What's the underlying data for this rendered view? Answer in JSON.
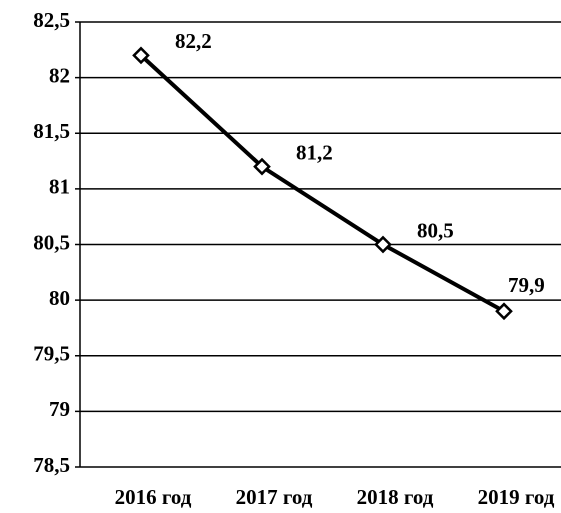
{
  "chart_data": {
    "type": "line",
    "categories": [
      "2016 год",
      "2017 год",
      "2018 год",
      "2019 год"
    ],
    "values": [
      82.2,
      81.2,
      80.5,
      79.9
    ],
    "value_labels": [
      "82,2",
      "81,2",
      "80,5",
      "79,9"
    ],
    "color": "#000000",
    "ylim": [
      78.5,
      82.5
    ],
    "yticks": [
      {
        "value": 78.5,
        "label": "78,5"
      },
      79,
      {
        "value": 79.5,
        "label": "79,5"
      },
      80,
      {
        "value": 80.5,
        "label": "80,5"
      },
      81,
      {
        "value": 81.5,
        "label": "81,5"
      },
      82,
      {
        "value": 82.5,
        "label": "82,5"
      }
    ],
    "grid": true
  }
}
